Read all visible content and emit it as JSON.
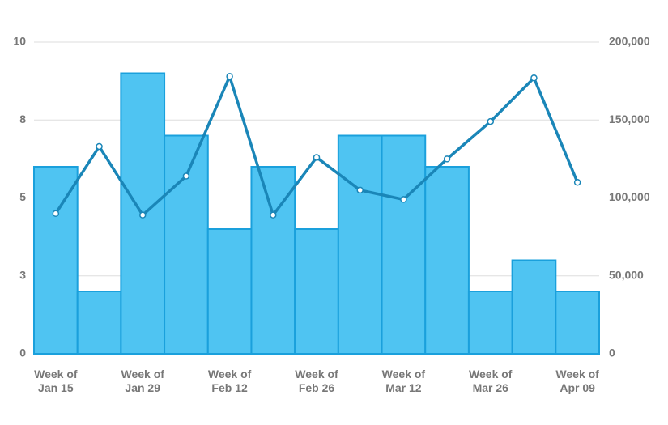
{
  "chart_data": {
    "type": "combo",
    "categories": [
      "Week of Jan 15",
      null,
      "Week of Jan 29",
      null,
      "Week of Feb 12",
      null,
      "Week of Feb 26",
      null,
      "Week of Mar 12",
      null,
      "Week of Mar 26",
      null,
      "Week of Apr 09"
    ],
    "series": [
      {
        "type": "bar",
        "color": "#4fc4f2",
        "values": [
          6,
          2,
          9,
          7,
          4,
          6,
          4,
          7,
          7,
          6,
          2,
          3,
          2
        ]
      },
      {
        "type": "line",
        "axis": "y2",
        "color": "#1a86b8",
        "values": [
          90000,
          133000,
          89000,
          114000,
          178000,
          89000,
          126000,
          105000,
          99000,
          125000,
          149000,
          177000,
          110000
        ]
      }
    ],
    "ylim": [
      0,
      10
    ],
    "yticks": [
      0,
      {
        "value": 2.5,
        "label": "3"
      },
      5,
      {
        "value": 7.5,
        "label": "8"
      },
      10
    ],
    "y2lim": [
      0,
      200000
    ],
    "y2ticks": [
      0,
      {
        "value": 50000,
        "label": "50,000"
      },
      {
        "value": 100000,
        "label": "100,000"
      },
      {
        "value": 150000,
        "label": "150,000"
      },
      {
        "value": 200000,
        "label": "200,000"
      }
    ],
    "grid": true
  }
}
